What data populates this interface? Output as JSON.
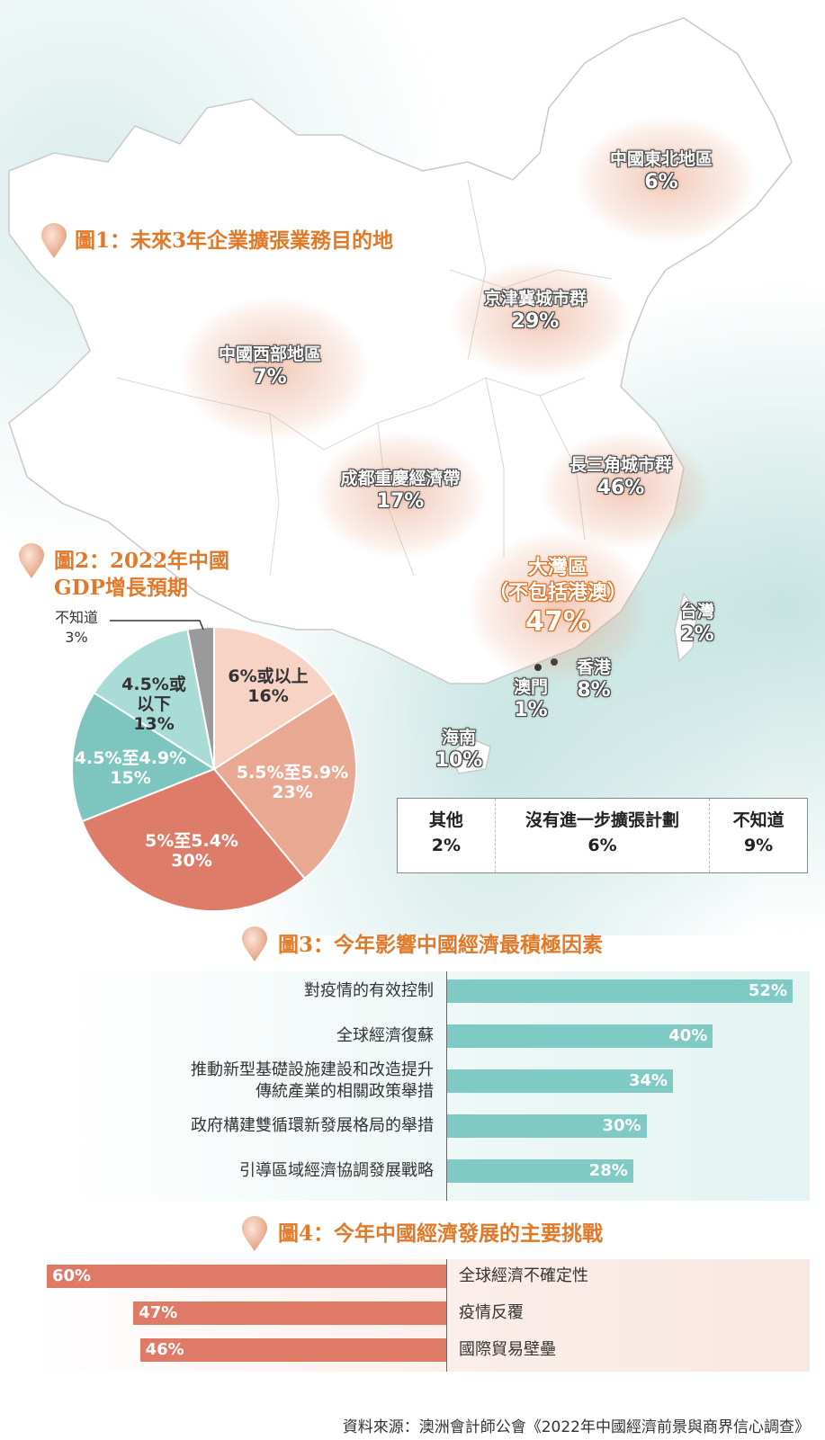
{
  "fig1": {
    "title": "圖1：未來3年企業擴張業務目的地",
    "regions": [
      {
        "id": "northeast",
        "name": "中國東北地區",
        "value": "6%"
      },
      {
        "id": "jingjinji",
        "name": "京津冀城市群",
        "value": "29%"
      },
      {
        "id": "west",
        "name": "中國西部地區",
        "value": "7%"
      },
      {
        "id": "chengyu",
        "name": "成都重慶經濟帶",
        "value": "17%"
      },
      {
        "id": "yangtze",
        "name": "長三角城市群",
        "value": "46%"
      },
      {
        "id": "gba",
        "name": "大灣區",
        "sub": "（不包括港澳）",
        "value": "47%"
      },
      {
        "id": "taiwan",
        "name": "台灣",
        "value": "2%"
      },
      {
        "id": "hongkong",
        "name": "香港",
        "value": "8%"
      },
      {
        "id": "macau",
        "name": "澳門",
        "value": "1%"
      },
      {
        "id": "hainan",
        "name": "海南",
        "value": "10%"
      }
    ],
    "other_box": [
      {
        "label": "其他",
        "value": "2%"
      },
      {
        "label": "沒有進一步擴張計劃",
        "value": "6%"
      },
      {
        "label": "不知道",
        "value": "9%"
      }
    ]
  },
  "fig2": {
    "title_line1": "圖2：2022年中國",
    "title_line2": "GDP增長預期"
  },
  "fig3": {
    "title": "圖3：今年影響中國經濟最積極因素"
  },
  "fig4": {
    "title": "圖4：今年中國經濟發展的主要挑戰"
  },
  "source": "資料來源：澳洲會計師公會《2022年中國經濟前景與商界信心調查》",
  "colors": {
    "accent": "#e07a2a",
    "teal_bar": "#7fcac4",
    "coral_bar": "#df7a66",
    "pie": [
      "#f7d3c6",
      "#e9a892",
      "#dd7c69",
      "#7fc5bf",
      "#a9dcd6",
      "#9a9a9a"
    ]
  },
  "chart_data": [
    {
      "type": "pie",
      "title": "圖2：2022年中國 GDP增長預期",
      "slices": [
        {
          "label_l1": "6%或以上",
          "label_l2": "",
          "value": 16,
          "text": "16%"
        },
        {
          "label_l1": "5.5%至5.9%",
          "label_l2": "",
          "value": 23,
          "text": "23%"
        },
        {
          "label_l1": "5%至5.4%",
          "label_l2": "",
          "value": 30,
          "text": "30%"
        },
        {
          "label_l1": "4.5%至4.9%",
          "label_l2": "",
          "value": 15,
          "text": "15%"
        },
        {
          "label_l1": "4.5%或",
          "label_l2": "以下",
          "value": 13,
          "text": "13%"
        },
        {
          "label_l1": "不知道",
          "label_l2": "",
          "value": 3,
          "text": "3%"
        }
      ]
    },
    {
      "type": "bar",
      "title": "圖3：今年影響中國經濟最積極因素",
      "orientation": "horizontal",
      "categories": [
        [
          "對疫情的有效控制"
        ],
        [
          "全球經濟復蘇"
        ],
        [
          "推動新型基礎設施建設和改造提升",
          "傳統產業的相關政策舉措"
        ],
        [
          "政府構建雙循環新發展格局的舉措"
        ],
        [
          "引導區域經濟協調發展戰略"
        ]
      ],
      "values": [
        52,
        40,
        34,
        30,
        28
      ],
      "value_labels": [
        "52%",
        "40%",
        "34%",
        "30%",
        "28%"
      ],
      "xlim": [
        0,
        52
      ]
    },
    {
      "type": "bar",
      "title": "圖4：今年中國經濟發展的主要挑戰",
      "orientation": "horizontal",
      "categories": [
        "全球經濟不確定性",
        "疫情反覆",
        "國際貿易壁壘"
      ],
      "values": [
        60,
        47,
        46
      ],
      "value_labels": [
        "60%",
        "47%",
        "46%"
      ],
      "xlim": [
        0,
        60
      ]
    }
  ]
}
